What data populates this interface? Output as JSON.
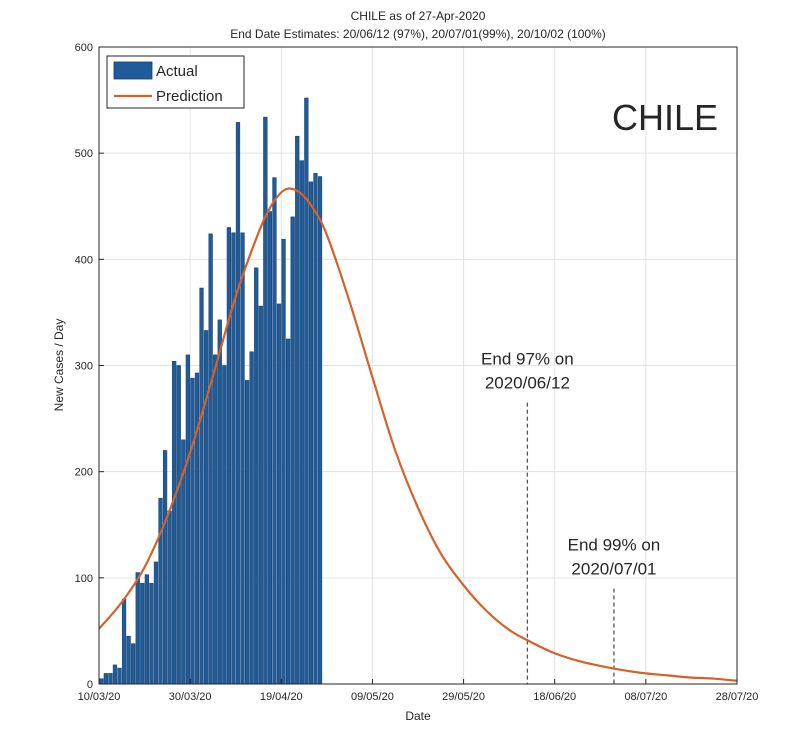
{
  "chart_data": {
    "type": "bar",
    "title": "CHILE as of 27-Apr-2020",
    "subtitle": "End Date Estimates: 20/06/12 (97%), 20/07/01(99%), 20/10/02 (100%)",
    "xlabel": "Date",
    "ylabel": "New Cases / Day",
    "xlim": [
      "2020-03-10",
      "2020-07-28"
    ],
    "ylim": [
      0,
      600
    ],
    "grid": true,
    "legend_position": "top-left",
    "x_tick_labels": [
      "10/03/20",
      "30/03/20",
      "19/04/20",
      "09/05/20",
      "29/05/20",
      "18/06/20",
      "08/07/20",
      "28/07/20"
    ],
    "x_tick_dates": [
      "2020-03-10",
      "2020-03-30",
      "2020-04-19",
      "2020-05-09",
      "2020-05-29",
      "2020-06-18",
      "2020-07-08",
      "2020-07-28"
    ],
    "y_ticks": [
      0,
      100,
      200,
      300,
      400,
      500,
      600
    ],
    "watermark_text": "CHILE",
    "series": [
      {
        "name": "Actual",
        "type": "bar",
        "color": "#1f5c99",
        "x": [
          "2020-03-10",
          "2020-03-11",
          "2020-03-12",
          "2020-03-13",
          "2020-03-14",
          "2020-03-15",
          "2020-03-16",
          "2020-03-17",
          "2020-03-18",
          "2020-03-19",
          "2020-03-20",
          "2020-03-21",
          "2020-03-22",
          "2020-03-23",
          "2020-03-24",
          "2020-03-25",
          "2020-03-26",
          "2020-03-27",
          "2020-03-28",
          "2020-03-29",
          "2020-03-30",
          "2020-03-31",
          "2020-04-01",
          "2020-04-02",
          "2020-04-03",
          "2020-04-04",
          "2020-04-05",
          "2020-04-06",
          "2020-04-07",
          "2020-04-08",
          "2020-04-09",
          "2020-04-10",
          "2020-04-11",
          "2020-04-12",
          "2020-04-13",
          "2020-04-14",
          "2020-04-15",
          "2020-04-16",
          "2020-04-17",
          "2020-04-18",
          "2020-04-19",
          "2020-04-20",
          "2020-04-21",
          "2020-04-22",
          "2020-04-23",
          "2020-04-24",
          "2020-04-25",
          "2020-04-26",
          "2020-04-27"
        ],
        "values": [
          5,
          10,
          10,
          18,
          15,
          80,
          45,
          38,
          105,
          95,
          103,
          95,
          115,
          175,
          220,
          163,
          304,
          300,
          230,
          310,
          288,
          293,
          373,
          333,
          424,
          310,
          343,
          300,
          430,
          425,
          529,
          425,
          286,
          313,
          392,
          356,
          534,
          445,
          477,
          358,
          419,
          325,
          440,
          516,
          493,
          552,
          473,
          481,
          478
        ]
      },
      {
        "name": "Prediction",
        "type": "line",
        "color": "#d4622a",
        "x": [
          "2020-03-10",
          "2020-03-15",
          "2020-03-20",
          "2020-03-25",
          "2020-03-30",
          "2020-04-04",
          "2020-04-09",
          "2020-04-14",
          "2020-04-17",
          "2020-04-20",
          "2020-04-23",
          "2020-04-26",
          "2020-04-29",
          "2020-05-04",
          "2020-05-09",
          "2020-05-14",
          "2020-05-19",
          "2020-05-24",
          "2020-05-29",
          "2020-06-03",
          "2020-06-08",
          "2020-06-13",
          "2020-06-18",
          "2020-06-23",
          "2020-06-28",
          "2020-07-03",
          "2020-07-08",
          "2020-07-13",
          "2020-07-18",
          "2020-07-23",
          "2020-07-28"
        ],
        "values": [
          52,
          77,
          110,
          158,
          218,
          290,
          365,
          425,
          452,
          466,
          463,
          448,
          423,
          360,
          289,
          220,
          166,
          123,
          93,
          69,
          51,
          39,
          29,
          22,
          17,
          13,
          10,
          8,
          6,
          5,
          3
        ]
      }
    ],
    "annotations": [
      {
        "line1": "End 97% on",
        "line2": "2020/06/12",
        "x": "2020-06-12",
        "top_y": 265
      },
      {
        "line1": "End 99% on",
        "line2": "2020/07/01",
        "x": "2020-07-01",
        "top_y": 90
      }
    ]
  }
}
